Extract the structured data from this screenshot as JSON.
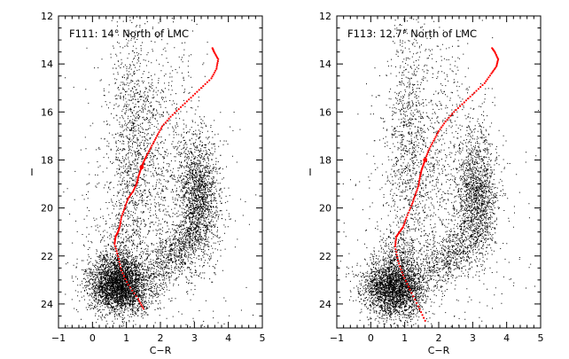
{
  "chart_data": [
    {
      "type": "scatter",
      "title": "F111: 14° North of LMC",
      "xlabel": "C−R",
      "ylabel": "I",
      "xlim": [
        -1,
        5
      ],
      "ylim": [
        25,
        12
      ],
      "y_inverted": true,
      "xticks": [
        "−1",
        "0",
        "1",
        "2",
        "3",
        "4",
        "5"
      ],
      "yticks": [
        "12",
        "14",
        "16",
        "18",
        "20",
        "22",
        "24"
      ],
      "grid": false,
      "legend": "none",
      "colors": {
        "field_stars": "#000000",
        "isochrone": "#ff0000"
      },
      "series": [
        {
          "kind": "field-star-density",
          "components": [
            {
              "x": 0.75,
              "y": 23.3,
              "sx": 0.45,
              "sy": 0.55,
              "rho": 0.1,
              "n": 2600
            },
            {
              "x": 0.8,
              "y": 22.6,
              "sx": 0.35,
              "sy": 0.8,
              "rho": 0.0,
              "n": 900
            },
            {
              "x": 3.1,
              "y": 19.6,
              "sx": 0.3,
              "sy": 1.3,
              "rho": 0.0,
              "n": 1700
            },
            {
              "x": 2.3,
              "y": 22.0,
              "sx": 0.5,
              "sy": 0.7,
              "rho": -0.6,
              "n": 700
            },
            {
              "x": 1.1,
              "y": 17.5,
              "sx": 0.3,
              "sy": 3.0,
              "rho": 0.0,
              "n": 900
            },
            {
              "x": 1.9,
              "y": 17.5,
              "sx": 0.7,
              "sy": 2.5,
              "rho": 0.0,
              "n": 800
            },
            {
              "x": 1.8,
              "y": 20.5,
              "sx": 1.3,
              "sy": 3.0,
              "rho": 0.0,
              "n": 600
            }
          ]
        },
        {
          "kind": "isochrone",
          "x": [
            1.5,
            1.35,
            1.05,
            0.85,
            0.75,
            0.65,
            0.68,
            0.75,
            0.8,
            0.85,
            0.95,
            1.05,
            1.2,
            1.3,
            1.35,
            1.42,
            1.45,
            1.5,
            1.6,
            1.75,
            1.9,
            2.05,
            2.3,
            2.6,
            2.9,
            3.2,
            3.5,
            3.65,
            3.7,
            3.58,
            3.52
          ],
          "y": [
            24.2,
            23.8,
            23.2,
            22.6,
            22.0,
            21.5,
            21.2,
            21.0,
            20.8,
            20.4,
            20.0,
            19.6,
            19.3,
            19.0,
            18.7,
            18.4,
            18.3,
            18.1,
            17.8,
            17.4,
            17.0,
            16.6,
            16.2,
            15.8,
            15.4,
            15.0,
            14.6,
            14.2,
            13.8,
            13.5,
            13.3
          ]
        }
      ]
    },
    {
      "type": "scatter",
      "title": "F113: 12.7° North of LMC",
      "xlabel": "C−R",
      "ylabel": "I",
      "xlim": [
        -1,
        5
      ],
      "ylim": [
        25,
        12
      ],
      "y_inverted": true,
      "xticks": [
        "−1",
        "0",
        "1",
        "2",
        "3",
        "4",
        "5"
      ],
      "yticks": [
        "12",
        "14",
        "16",
        "18",
        "20",
        "22",
        "24"
      ],
      "grid": false,
      "legend": "none",
      "colors": {
        "field_stars": "#000000",
        "isochrone": "#ff0000"
      },
      "series": [
        {
          "kind": "field-star-density",
          "components": [
            {
              "x": 0.65,
              "y": 23.4,
              "sx": 0.45,
              "sy": 0.55,
              "rho": 0.1,
              "n": 2300
            },
            {
              "x": 0.8,
              "y": 22.6,
              "sx": 0.35,
              "sy": 0.8,
              "rho": 0.0,
              "n": 800
            },
            {
              "x": 3.1,
              "y": 19.5,
              "sx": 0.3,
              "sy": 1.3,
              "rho": 0.0,
              "n": 1500
            },
            {
              "x": 2.3,
              "y": 22.0,
              "sx": 0.5,
              "sy": 0.7,
              "rho": -0.6,
              "n": 600
            },
            {
              "x": 1.1,
              "y": 17.5,
              "sx": 0.3,
              "sy": 3.0,
              "rho": 0.0,
              "n": 800
            },
            {
              "x": 1.9,
              "y": 17.5,
              "sx": 0.7,
              "sy": 2.5,
              "rho": 0.0,
              "n": 700
            },
            {
              "x": 1.8,
              "y": 20.5,
              "sx": 1.3,
              "sy": 3.0,
              "rho": 0.0,
              "n": 550
            }
          ]
        },
        {
          "kind": "isochrone",
          "x": [
            1.6,
            1.4,
            1.15,
            0.95,
            0.8,
            0.72,
            0.75,
            0.85,
            0.95,
            1.05,
            1.2,
            1.3,
            1.4,
            1.45,
            1.5,
            1.55,
            1.6,
            1.7,
            1.85,
            2.0,
            2.2,
            2.45,
            2.75,
            3.05,
            3.35,
            3.55,
            3.7,
            3.75,
            3.65,
            3.55
          ],
          "y": [
            24.7,
            24.1,
            23.4,
            22.8,
            22.2,
            21.6,
            21.2,
            21.0,
            20.8,
            20.4,
            19.9,
            19.5,
            19.1,
            18.7,
            18.4,
            18.2,
            18.0,
            17.6,
            17.2,
            16.8,
            16.4,
            16.0,
            15.6,
            15.2,
            14.8,
            14.4,
            14.1,
            13.8,
            13.5,
            13.3
          ]
        }
      ]
    }
  ]
}
